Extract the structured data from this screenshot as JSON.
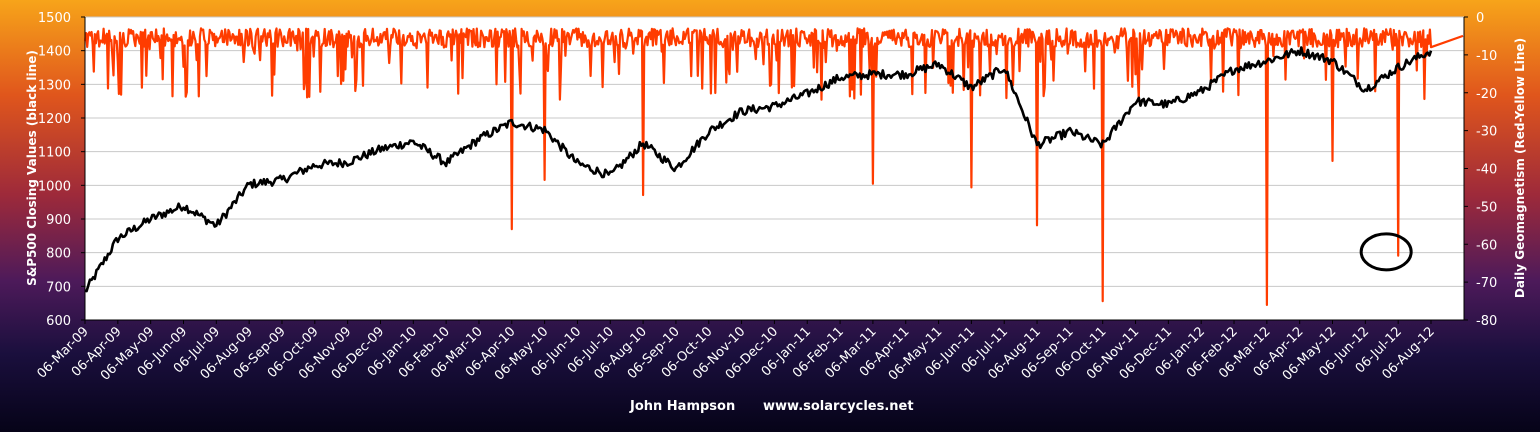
{
  "chart_data": {
    "type": "line",
    "y_left_label": "S&P500 Closing Values (black line)",
    "y_right_label": "Daily Geomagnetism (Red-Yellow Line)",
    "footer_author": "John Hampson",
    "footer_url": "www.solarcycles.net",
    "y_left_range": [
      600,
      1500
    ],
    "y_left_ticks": [
      600,
      700,
      800,
      900,
      1000,
      1100,
      1200,
      1300,
      1400,
      1500
    ],
    "y_right_range": [
      -80,
      0
    ],
    "y_right_ticks": [
      0,
      -10,
      -20,
      -30,
      -40,
      -50,
      -60,
      -70,
      -80
    ],
    "x_ticks": [
      "06-Mar-09",
      "06-Apr-09",
      "06-May-09",
      "06-Jun-09",
      "06-Jul-09",
      "06-Aug-09",
      "06-Sep-09",
      "06-Oct-09",
      "06-Nov-09",
      "06-Dec-09",
      "06-Jan-10",
      "06-Feb-10",
      "06-Mar-10",
      "06-Apr-10",
      "06-May-10",
      "06-Jun-10",
      "06-Jul-10",
      "06-Aug-10",
      "06-Sep-10",
      "06-Oct-10",
      "06-Nov-10",
      "06-Dec-10",
      "06-Jan-11",
      "06-Feb-11",
      "06-Mar-11",
      "06-Apr-11",
      "06-May-11",
      "06-Jun-11",
      "06-Jul-11",
      "06-Aug-11",
      "06-Sep-11",
      "06-Oct-11",
      "06-Nov-11",
      "06-Dec-11",
      "06-Jan-12",
      "06-Feb-12",
      "06-Mar-12",
      "06-Apr-12",
      "06-May-12",
      "06-Jun-12",
      "06-Jul-12",
      "06-Aug-12"
    ],
    "grid": "horizontal",
    "colors": {
      "sp500": "#000000",
      "geomagnetism": "#ff3c00",
      "grid": "#c8c8c8",
      "plot_background": "#ffffff",
      "circle": "#000000"
    },
    "series": [
      {
        "name": "S&P500",
        "axis": "left",
        "note": "approximate monthly closing values read from the chart",
        "x": [
          "06-Mar-09",
          "06-Apr-09",
          "06-May-09",
          "06-Jun-09",
          "06-Jul-09",
          "06-Aug-09",
          "06-Sep-09",
          "06-Oct-09",
          "06-Nov-09",
          "06-Dec-09",
          "06-Jan-10",
          "06-Feb-10",
          "06-Mar-10",
          "06-Apr-10",
          "06-May-10",
          "06-Jun-10",
          "06-Jul-10",
          "06-Aug-10",
          "06-Sep-10",
          "06-Oct-10",
          "06-Nov-10",
          "06-Dec-10",
          "06-Jan-11",
          "06-Feb-11",
          "06-Mar-11",
          "06-Apr-11",
          "06-May-11",
          "06-Jun-11",
          "06-Jul-11",
          "06-Aug-11",
          "06-Sep-11",
          "06-Oct-11",
          "06-Nov-11",
          "06-Dec-11",
          "06-Jan-12",
          "06-Feb-12",
          "06-Mar-12",
          "06-Apr-12",
          "06-May-12",
          "06-Jun-12",
          "06-Jul-12",
          "06-Aug-12"
        ],
        "values": [
          683,
          842,
          900,
          940,
          880,
          1003,
          1016,
          1060,
          1069,
          1107,
          1130,
          1066,
          1138,
          1187,
          1165,
          1065,
          1028,
          1125,
          1050,
          1160,
          1220,
          1235,
          1272,
          1320,
          1330,
          1330,
          1360,
          1290,
          1350,
          1120,
          1160,
          1120,
          1250,
          1240,
          1280,
          1345,
          1370,
          1400,
          1370,
          1285,
          1350,
          1400
        ]
      },
      {
        "name": "Daily Geomagnetism",
        "axis": "right",
        "note": "baseline values near 0 to -10 with notable negative spikes (approximate)",
        "spikes": [
          {
            "date": "06-Apr-10",
            "value": -56
          },
          {
            "date": "06-May-10",
            "value": -43
          },
          {
            "date": "06-Aug-10",
            "value": -47
          },
          {
            "date": "06-Mar-11",
            "value": -44
          },
          {
            "date": "06-Jun-11",
            "value": -45
          },
          {
            "date": "06-Aug-11",
            "value": -55
          },
          {
            "date": "06-Oct-11",
            "value": -75
          },
          {
            "date": "06-Mar-12",
            "value": -76
          },
          {
            "date": "06-May-12",
            "value": -38
          },
          {
            "date": "06-Jul-12",
            "value": -63
          }
        ]
      }
    ],
    "annotations": [
      {
        "type": "circle",
        "date": "06-Jul-12",
        "value": -62,
        "axis": "right"
      }
    ]
  }
}
